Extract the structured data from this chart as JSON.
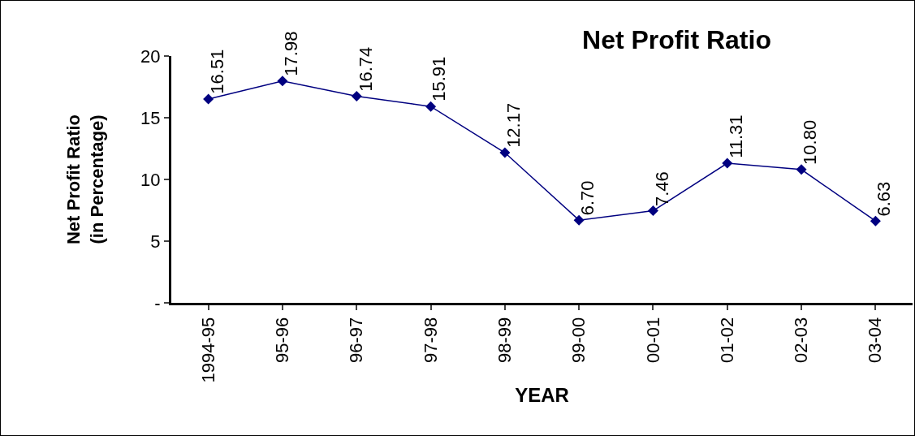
{
  "chart_data": {
    "type": "line",
    "title": "Net Profit Ratio",
    "xlabel": "YEAR",
    "ylabel": "Net Profit Ratio\n(in Percentage)",
    "categories": [
      "1994-95",
      "95-96",
      "96-97",
      "97-98",
      "98-99",
      "99-00",
      "00-01",
      "01-02",
      "02-03",
      "03-04"
    ],
    "values": [
      16.51,
      17.98,
      16.74,
      15.91,
      12.17,
      6.7,
      7.46,
      11.31,
      10.8,
      6.63
    ],
    "value_labels": [
      "16.51",
      "17.98",
      "16.74",
      "15.91",
      "12.17",
      "6.70",
      "7.46",
      "11.31",
      "10.80",
      "6.63"
    ],
    "color": "#000080",
    "marker": "diamond",
    "line_style": "solid",
    "ylim": [
      0,
      20
    ],
    "yticks": [
      {
        "value": 0,
        "label": "-"
      },
      5,
      10,
      15,
      20
    ],
    "grid": false,
    "legend": false
  }
}
